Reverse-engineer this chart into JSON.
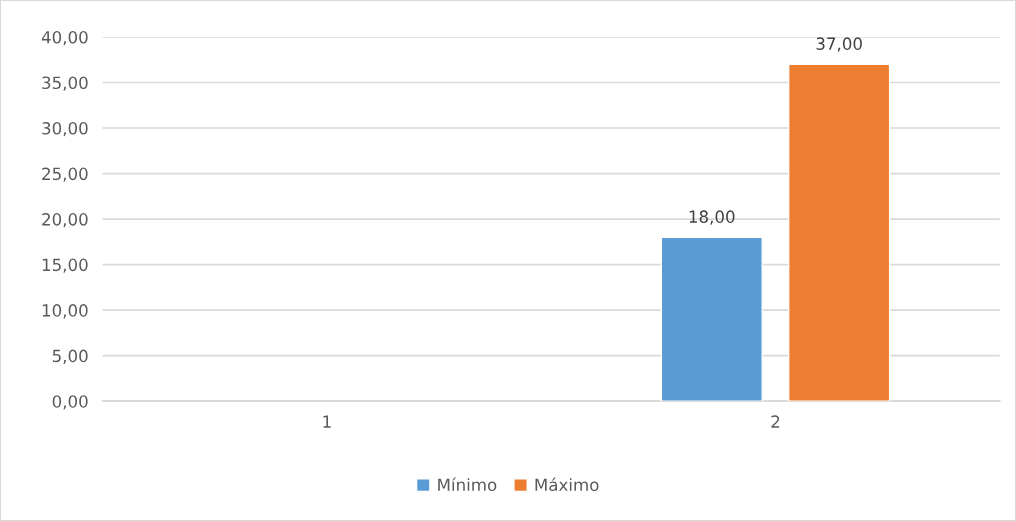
{
  "chart_data": {
    "type": "bar",
    "categories": [
      "1",
      "2"
    ],
    "series": [
      {
        "name": "Mínimo",
        "color": "#5b9bd5",
        "values": [
          null,
          18
        ],
        "value_labels": [
          null,
          "18,00"
        ]
      },
      {
        "name": "Máximo",
        "color": "#ed7d31",
        "values": [
          null,
          37
        ],
        "value_labels": [
          null,
          "37,00"
        ]
      }
    ],
    "ylim": [
      0,
      40
    ],
    "yticks": [
      {
        "value": 0,
        "label": "0,00"
      },
      {
        "value": 5,
        "label": "5,00"
      },
      {
        "value": 10,
        "label": "10,00"
      },
      {
        "value": 15,
        "label": "15,00"
      },
      {
        "value": 20,
        "label": "20,00"
      },
      {
        "value": 25,
        "label": "25,00"
      },
      {
        "value": 30,
        "label": "30,00"
      },
      {
        "value": 35,
        "label": "35,00"
      },
      {
        "value": 40,
        "label": "40,00"
      }
    ],
    "grid": "y",
    "legend": "bottom"
  }
}
